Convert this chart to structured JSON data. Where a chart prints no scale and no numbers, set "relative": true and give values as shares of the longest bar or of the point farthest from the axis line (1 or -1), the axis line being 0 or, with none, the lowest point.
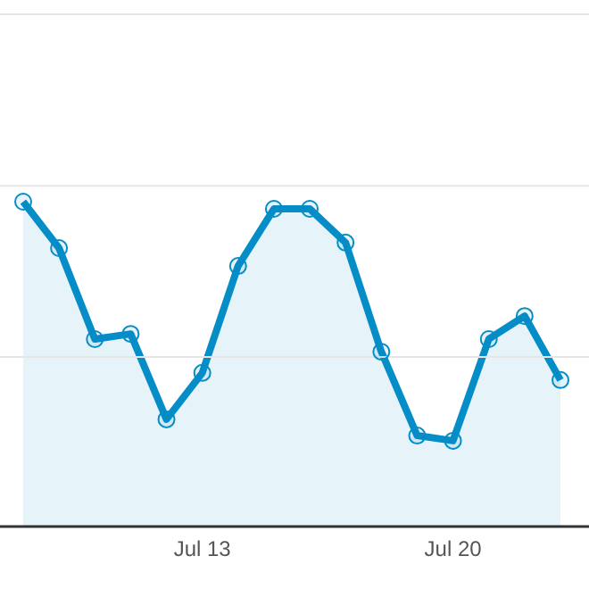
{
  "chart_data": {
    "type": "area",
    "relative": true,
    "categories": [
      null,
      null,
      null,
      null,
      null,
      "Jul 13",
      null,
      null,
      null,
      null,
      null,
      null,
      "Jul 20",
      null,
      null,
      null
    ],
    "series": [
      {
        "color": "#058dc7",
        "values": [
          1.0,
          0.857,
          0.577,
          0.593,
          0.33,
          0.473,
          0.802,
          0.978,
          0.978,
          0.874,
          0.538,
          0.28,
          0.264,
          0.577,
          0.648,
          0.451
        ]
      }
    ],
    "ref_lines": [
      {
        "axis": "y",
        "value": 0.522,
        "color": "#e6e6e6"
      },
      {
        "axis": "y",
        "value": 1.049,
        "color": "#e6e6e6"
      },
      {
        "axis": "y",
        "value": 1.577,
        "color": "#e6e6e6"
      }
    ],
    "marker": "circle"
  }
}
